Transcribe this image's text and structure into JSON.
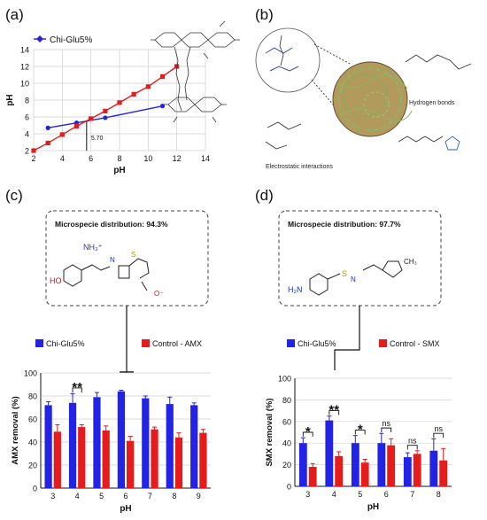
{
  "panels": [
    {
      "id": "a",
      "tag": "(a)"
    },
    {
      "id": "b",
      "tag": "(b)"
    },
    {
      "id": "c",
      "tag": "(c)"
    },
    {
      "id": "d",
      "tag": "(d)"
    }
  ],
  "colors": {
    "blue": "#2323e6",
    "red": "#e61c1c",
    "black": "#111111"
  },
  "panel_b": {
    "hydrogen_label": "Hydrogen bonds",
    "electrostatic_label": "Electrostatic interactions"
  },
  "panel_c": {
    "box_title": "Microspecie distribution: 94.3%",
    "legend_left": "Chi-Glu5%",
    "legend_right": "Control - AMX"
  },
  "panel_d": {
    "box_title": "Microspecie distribution: 97.7%",
    "legend_left": "Chi-Glu5%",
    "legend_right": "Control - SMX"
  },
  "chart_data": [
    {
      "panel": "a",
      "type": "line",
      "xlabel": "pH",
      "ylabel": "pH",
      "xlim": [
        2,
        14
      ],
      "ylim": [
        2,
        14
      ],
      "xticks": [
        2,
        4,
        6,
        8,
        10,
        12,
        14
      ],
      "yticks": [
        2,
        4,
        6,
        8,
        10,
        12,
        14
      ],
      "series": [
        {
          "name": "Chi-Glu5%",
          "color": "#2323e6",
          "x": [
            3,
            5,
            7,
            11
          ],
          "y": [
            4.7,
            5.3,
            5.9,
            7.3
          ]
        },
        {
          "name": "",
          "color": "#e61c1c",
          "x": [
            2,
            3,
            4,
            5,
            6,
            7,
            8,
            9,
            10,
            11,
            12
          ],
          "y": [
            2.0,
            2.9,
            3.9,
            4.9,
            5.8,
            6.7,
            7.7,
            8.7,
            9.6,
            10.8,
            12.0
          ]
        }
      ],
      "annotations": [
        {
          "text": "5.70",
          "x": 5.7
        }
      ]
    },
    {
      "panel": "c",
      "type": "bar",
      "xlabel": "pH",
      "ylabel": "AMX removal (%)",
      "ylim": [
        0,
        100
      ],
      "yticks": [
        0,
        20,
        40,
        60,
        80,
        100
      ],
      "categories": [
        "3",
        "4",
        "5",
        "6",
        "7",
        "8",
        "9"
      ],
      "series": [
        {
          "name": "Chi-Glu5%",
          "color": "#2323e6",
          "values": [
            72,
            74,
            79,
            84,
            78,
            73,
            72
          ],
          "errors": [
            3,
            8,
            4,
            1,
            2,
            6,
            2
          ]
        },
        {
          "name": "Control - AMX",
          "color": "#e61c1c",
          "values": [
            49,
            53,
            50,
            41,
            51,
            44,
            48
          ],
          "errors": [
            6,
            2,
            4,
            4,
            2,
            4,
            3
          ]
        }
      ],
      "significance": [
        {
          "category": "4",
          "text": "**"
        }
      ]
    },
    {
      "panel": "d",
      "type": "bar",
      "xlabel": "pH",
      "ylabel": "SMX removal (%)",
      "ylim": [
        0,
        100
      ],
      "yticks": [
        0,
        20,
        40,
        60,
        80,
        100
      ],
      "categories": [
        "3",
        "4",
        "5",
        "6",
        "7",
        "8"
      ],
      "series": [
        {
          "name": "Chi-Glu5%",
          "color": "#2323e6",
          "values": [
            40,
            61,
            40,
            40,
            27,
            33
          ],
          "errors": [
            5,
            4,
            7,
            9,
            4,
            11
          ]
        },
        {
          "name": "Control - SMX",
          "color": "#e61c1c",
          "values": [
            18,
            28,
            22,
            38,
            30,
            24
          ],
          "errors": [
            3,
            4,
            3,
            6,
            3,
            11
          ]
        }
      ],
      "significance": [
        {
          "category": "3",
          "text": "*"
        },
        {
          "category": "4",
          "text": "**"
        },
        {
          "category": "5",
          "text": "*"
        },
        {
          "category": "6",
          "text": "ns"
        },
        {
          "category": "7",
          "text": "ns"
        },
        {
          "category": "8",
          "text": "ns"
        }
      ]
    }
  ]
}
